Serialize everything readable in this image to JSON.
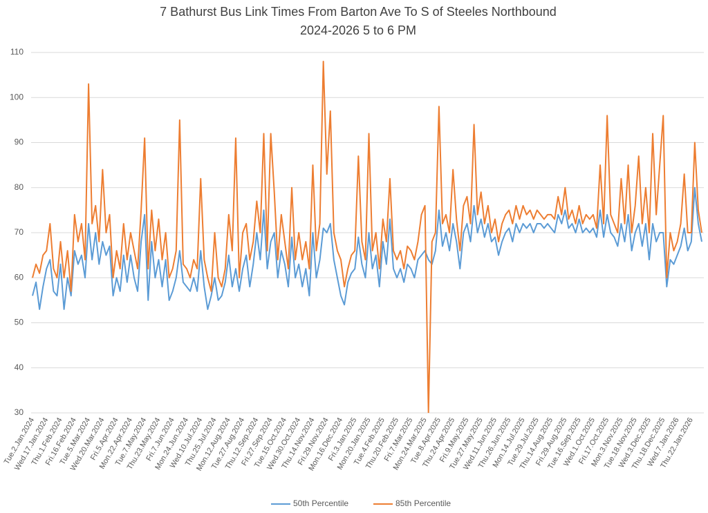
{
  "chart_data": {
    "type": "line",
    "title": "7 Bathurst Bus Link Times From Barton Ave To S of Steeles Northbound",
    "subtitle": "2024-2026 5 to 6 PM",
    "ylim": [
      30,
      110
    ],
    "yticks": [
      30,
      40,
      50,
      60,
      70,
      80,
      90,
      100,
      110
    ],
    "grid": true,
    "legend": "bottom",
    "categories": [
      "Tue.2.Jan.2024",
      null,
      null,
      null,
      "Wed.17.Jan.2024",
      null,
      null,
      null,
      "Thu.1.Feb.2024",
      null,
      null,
      null,
      "Fri.16.Feb.2024",
      null,
      null,
      null,
      "Tue.5.Mar.2024",
      null,
      null,
      null,
      "Wed.20.Mar.2024",
      null,
      null,
      null,
      "Fri.5.Apr.2024",
      null,
      null,
      null,
      "Mon.22.Apr.2024",
      null,
      null,
      null,
      "Tue.7.May.2024",
      null,
      null,
      null,
      "Thu.23.May.2024",
      null,
      null,
      null,
      "Fri.7.Jun.2024",
      null,
      null,
      null,
      "Mon.24.Jun.2024",
      null,
      null,
      null,
      "Wed.10.Jul.2024",
      null,
      null,
      null,
      "Thu.25.Jul.2024",
      null,
      null,
      null,
      "Mon.12.Aug.2024",
      null,
      null,
      null,
      "Tue.27.Aug.2024",
      null,
      null,
      null,
      "Thu.12.Sep.2024",
      null,
      null,
      null,
      "Fri.27.Sep.2024",
      null,
      null,
      null,
      "Tue.15.Oct.2024",
      null,
      null,
      null,
      "Wed.30.Oct.2024",
      null,
      null,
      null,
      "Thu.14.Nov.2024",
      null,
      null,
      null,
      "Fri.29.Nov.2024",
      null,
      null,
      null,
      "Mon.16.Dec.2024",
      null,
      null,
      null,
      "Fri.3.Jan.2025",
      null,
      null,
      null,
      "Mon.20.Jan.2025",
      null,
      null,
      null,
      "Tue.4.Feb.2025",
      null,
      null,
      null,
      "Thu.20.Feb.2025",
      null,
      null,
      null,
      "Fri.7.Mar.2025",
      null,
      null,
      null,
      "Mon.24.Mar.2025",
      null,
      null,
      null,
      "Tue.8.Apr.2025",
      null,
      null,
      null,
      "Thu.24.Apr.2025",
      null,
      null,
      null,
      "Fri.9.May.2025",
      null,
      null,
      null,
      "Tue.27.May.2025",
      null,
      null,
      null,
      "Wed.11.Jun.2025",
      null,
      null,
      null,
      "Thu.26.Jun.2025",
      null,
      null,
      null,
      "Mon.14.Jul.2025",
      null,
      null,
      null,
      "Tue.29.Jul.2025",
      null,
      null,
      null,
      "Thu.14.Aug.2025",
      null,
      null,
      null,
      "Fri.29.Aug.2025",
      null,
      null,
      null,
      "Tue.16.Sep.2025",
      null,
      null,
      null,
      "Wed.1.Oct.2025",
      null,
      null,
      null,
      "Fri.17.Oct.2025",
      null,
      null,
      null,
      "Mon.3.Nov.2025",
      null,
      null,
      null,
      "Tue.18.Nov.2025",
      null,
      null,
      null,
      "Wed.3.Dec.2025",
      null,
      null,
      null,
      "Thu.18.Dec.2025",
      null,
      null,
      null,
      "Wed.7.Jan.2026",
      null,
      null,
      null,
      "Thu.22.Jan.2026",
      null,
      null,
      null
    ],
    "series": [
      {
        "name": "50th Percentile",
        "color": "#5b9bd5",
        "values": [
          56,
          59,
          53,
          58,
          62,
          64,
          57,
          56,
          63,
          53,
          60,
          56,
          66,
          63,
          65,
          60,
          72,
          64,
          70,
          63,
          68,
          65,
          67,
          56,
          60,
          57,
          65,
          59,
          65,
          60,
          57,
          68,
          74,
          55,
          68,
          60,
          64,
          58,
          64,
          55,
          57,
          60,
          66,
          59,
          58,
          57,
          60,
          57,
          66,
          58,
          53,
          56,
          60,
          55,
          56,
          59,
          65,
          58,
          62,
          57,
          62,
          65,
          58,
          63,
          70,
          64,
          75,
          62,
          68,
          70,
          60,
          66,
          63,
          58,
          69,
          60,
          63,
          58,
          62,
          56,
          70,
          60,
          64,
          71,
          70,
          72,
          64,
          60,
          56,
          54,
          59,
          61,
          62,
          69,
          63,
          60,
          70,
          62,
          65,
          58,
          68,
          63,
          73,
          62,
          60,
          62,
          59,
          63,
          62,
          60,
          64,
          65,
          66,
          64,
          63,
          66,
          75,
          67,
          70,
          66,
          72,
          68,
          62,
          70,
          72,
          68,
          76,
          70,
          73,
          69,
          72,
          68,
          69,
          65,
          68,
          70,
          71,
          68,
          72,
          70,
          72,
          71,
          72,
          70,
          72,
          72,
          71,
          72,
          71,
          70,
          74,
          72,
          75,
          71,
          72,
          70,
          73,
          70,
          71,
          70,
          71,
          69,
          75,
          69,
          74,
          70,
          69,
          67,
          72,
          68,
          74,
          66,
          70,
          72,
          67,
          72,
          64,
          72,
          68,
          70,
          70,
          58,
          64,
          63,
          65,
          67,
          71,
          66,
          68,
          80,
          72,
          68
        ]
      },
      {
        "name": "85th Percentile",
        "color": "#ed7d31",
        "values": [
          60,
          63,
          61,
          65,
          66,
          72,
          62,
          60,
          68,
          60,
          66,
          57,
          74,
          68,
          72,
          64,
          103,
          72,
          76,
          68,
          84,
          70,
          74,
          60,
          66,
          62,
          72,
          64,
          70,
          66,
          62,
          75,
          91,
          62,
          75,
          66,
          73,
          64,
          70,
          60,
          62,
          66,
          95,
          63,
          62,
          60,
          64,
          62,
          82,
          64,
          60,
          57,
          70,
          60,
          58,
          62,
          74,
          66,
          91,
          60,
          70,
          72,
          64,
          68,
          77,
          70,
          92,
          66,
          92,
          79,
          64,
          74,
          68,
          62,
          80,
          64,
          70,
          64,
          68,
          62,
          85,
          66,
          72,
          108,
          83,
          97,
          70,
          66,
          64,
          58,
          62,
          65,
          66,
          87,
          68,
          64,
          92,
          66,
          70,
          62,
          73,
          68,
          82,
          66,
          64,
          66,
          62,
          67,
          66,
          64,
          68,
          74,
          76,
          30,
          68,
          70,
          98,
          72,
          74,
          70,
          84,
          73,
          66,
          76,
          78,
          72,
          94,
          74,
          79,
          72,
          76,
          70,
          73,
          68,
          72,
          74,
          75,
          72,
          76,
          73,
          76,
          74,
          75,
          73,
          75,
          74,
          73,
          74,
          74,
          73,
          78,
          74,
          80,
          73,
          75,
          72,
          76,
          72,
          74,
          73,
          74,
          71,
          85,
          72,
          96,
          74,
          72,
          70,
          82,
          72,
          85,
          70,
          76,
          87,
          72,
          80,
          70,
          92,
          74,
          85,
          96,
          60,
          70,
          66,
          68,
          72,
          83,
          70,
          70,
          90,
          75,
          70
        ]
      }
    ]
  }
}
